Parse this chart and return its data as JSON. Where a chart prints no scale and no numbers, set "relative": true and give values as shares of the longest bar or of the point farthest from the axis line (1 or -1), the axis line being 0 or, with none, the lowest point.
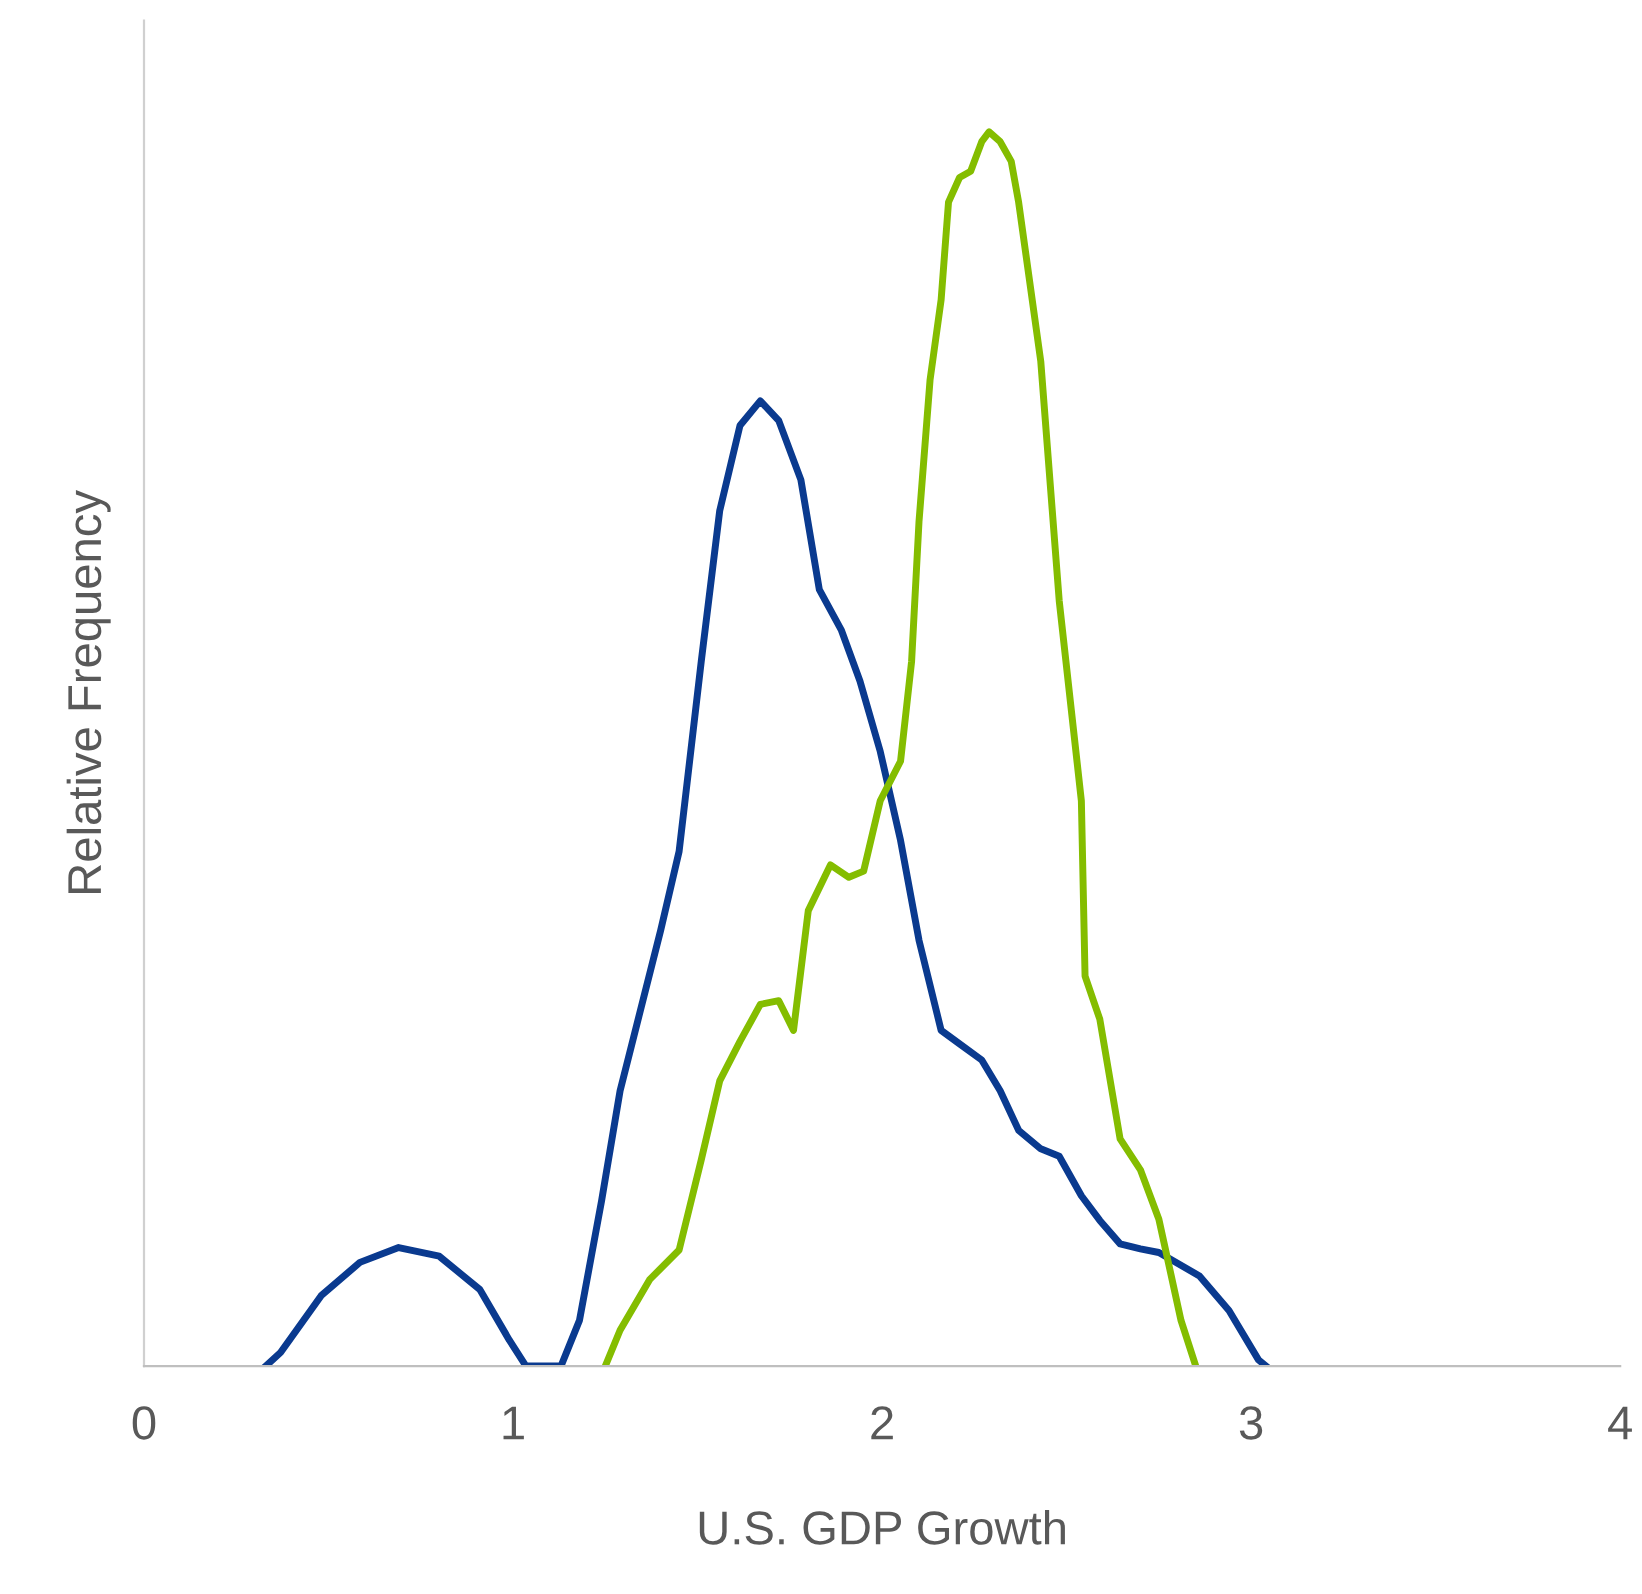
{
  "chart_data": {
    "type": "line",
    "relative": true,
    "xlabel": "U.S. GDP Growth",
    "ylabel": "Relative Frequency",
    "xlim": [
      0,
      4
    ],
    "xticks": [
      0,
      1,
      2,
      3,
      4
    ],
    "tick_labels": "x",
    "grid": false,
    "marker": "none",
    "line_style": "solid",
    "series": [
      {
        "color": "#0a3a8f",
        "x": [
          0.33,
          0.37,
          0.48,
          0.585,
          0.69,
          0.8,
          0.91,
          0.99,
          1.035,
          1.13,
          1.18,
          1.24,
          1.29,
          1.4,
          1.45,
          1.51,
          1.56,
          1.615,
          1.67,
          1.72,
          1.78,
          1.83,
          1.89,
          1.94,
          1.995,
          2.05,
          2.1,
          2.16,
          2.21,
          2.27,
          2.32,
          2.37,
          2.43,
          2.48,
          2.54,
          2.59,
          2.645,
          2.7,
          2.75,
          2.86,
          2.94,
          3.02,
          3.04
        ],
        "values": [
          0,
          0.011,
          0.057,
          0.084,
          0.096,
          0.089,
          0.062,
          0.021,
          0,
          0,
          0.037,
          0.134,
          0.223,
          0.353,
          0.417,
          0.571,
          0.693,
          0.762,
          0.782,
          0.766,
          0.718,
          0.629,
          0.596,
          0.555,
          0.498,
          0.426,
          0.345,
          0.272,
          0.261,
          0.248,
          0.223,
          0.191,
          0.176,
          0.17,
          0.138,
          0.118,
          0.099,
          0.095,
          0.092,
          0.073,
          0.045,
          0.005,
          0
        ]
      },
      {
        "color": "#84bd00",
        "x": [
          1.25,
          1.29,
          1.37,
          1.45,
          1.51,
          1.56,
          1.615,
          1.67,
          1.72,
          1.76,
          1.8,
          1.86,
          1.91,
          1.95,
          1.995,
          2.05,
          2.08,
          2.1,
          2.13,
          2.16,
          2.18,
          2.21,
          2.24,
          2.27,
          2.29,
          2.32,
          2.35,
          2.37,
          2.43,
          2.48,
          2.54,
          2.55,
          2.59,
          2.645,
          2.7,
          2.75,
          2.81,
          2.85
        ],
        "values": [
          0,
          0.029,
          0.07,
          0.094,
          0.167,
          0.231,
          0.263,
          0.293,
          0.296,
          0.272,
          0.369,
          0.406,
          0.396,
          0.401,
          0.458,
          0.49,
          0.571,
          0.684,
          0.799,
          0.864,
          0.943,
          0.963,
          0.968,
          0.992,
          1.0,
          0.992,
          0.976,
          0.943,
          0.814,
          0.62,
          0.458,
          0.316,
          0.281,
          0.184,
          0.159,
          0.119,
          0.037,
          0
        ]
      }
    ]
  }
}
